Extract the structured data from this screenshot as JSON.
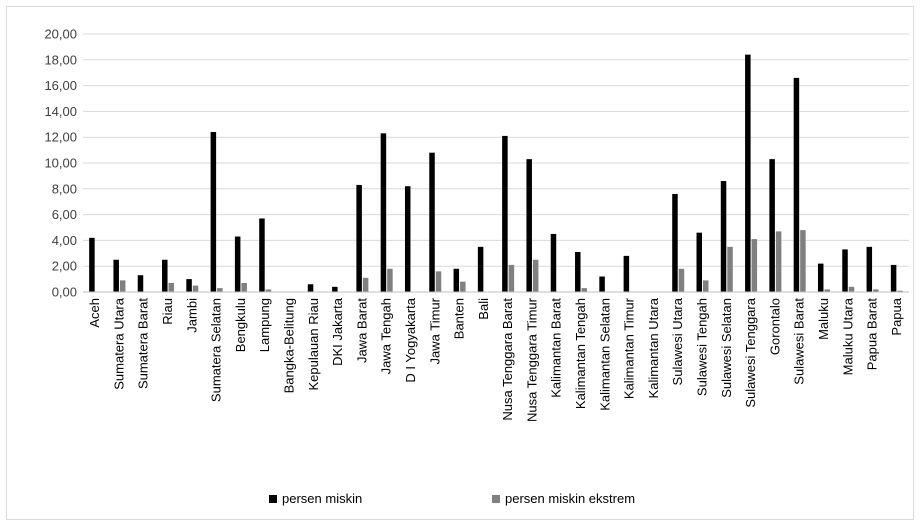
{
  "chart_data": {
    "type": "bar",
    "title": "",
    "xlabel": "",
    "ylabel": "",
    "ylim": [
      0,
      20
    ],
    "yticks": [
      "0,00",
      "2,00",
      "4,00",
      "6,00",
      "8,00",
      "10,00",
      "12,00",
      "14,00",
      "16,00",
      "18,00",
      "20,00"
    ],
    "grid": true,
    "legend_position": "bottom",
    "categories": [
      "Aceh",
      "Sumatera Utara",
      "Sumatera Barat",
      "Riau",
      "Jambi",
      "Sumatera Selatan",
      "Bengkulu",
      "Lampung",
      "Bangka-Belitung",
      "Kepulauan Riau",
      "DKI Jakarta",
      "Jawa Barat",
      "Jawa Tengah",
      "D I Yogyakarta",
      "Jawa Timur",
      "Banten",
      "Bali",
      "Nusa Tenggara Barat",
      "Nusa Tenggara Timur",
      "Kalimantan Barat",
      "Kalimantan Tengah",
      "Kalimantan Selatan",
      "Kalimantan Timur",
      "Kalimantan Utara",
      "Sulawesi Utara",
      "Sulawesi Tengah",
      "Sulawesi Selatan",
      "Sulawesi Tenggara",
      "Gorontalo",
      "Sulawesi Barat",
      "Maluku",
      "Maluku Utara",
      "Papua Barat",
      "Papua"
    ],
    "series": [
      {
        "name": "persen miskin",
        "color": "#000000",
        "values": [
          4.2,
          2.5,
          1.3,
          2.5,
          1.0,
          12.4,
          4.3,
          5.7,
          0.0,
          0.6,
          0.4,
          8.3,
          12.3,
          8.2,
          10.8,
          1.8,
          3.5,
          12.1,
          10.3,
          4.5,
          3.1,
          1.2,
          2.8,
          0.0,
          7.6,
          4.6,
          8.6,
          18.4,
          10.3,
          16.6,
          2.2,
          3.3,
          3.5,
          2.1
        ]
      },
      {
        "name": "persen miskin ekstrem",
        "color": "#808080",
        "values": [
          0.0,
          0.9,
          0.0,
          0.7,
          0.5,
          0.3,
          0.7,
          0.2,
          0.0,
          0.0,
          0.0,
          1.1,
          1.8,
          0.0,
          1.6,
          0.8,
          0.0,
          2.1,
          2.5,
          0.0,
          0.3,
          0.0,
          0.0,
          0.0,
          1.8,
          0.9,
          3.5,
          4.1,
          4.7,
          4.8,
          0.2,
          0.4,
          0.2,
          0.1
        ]
      }
    ]
  }
}
